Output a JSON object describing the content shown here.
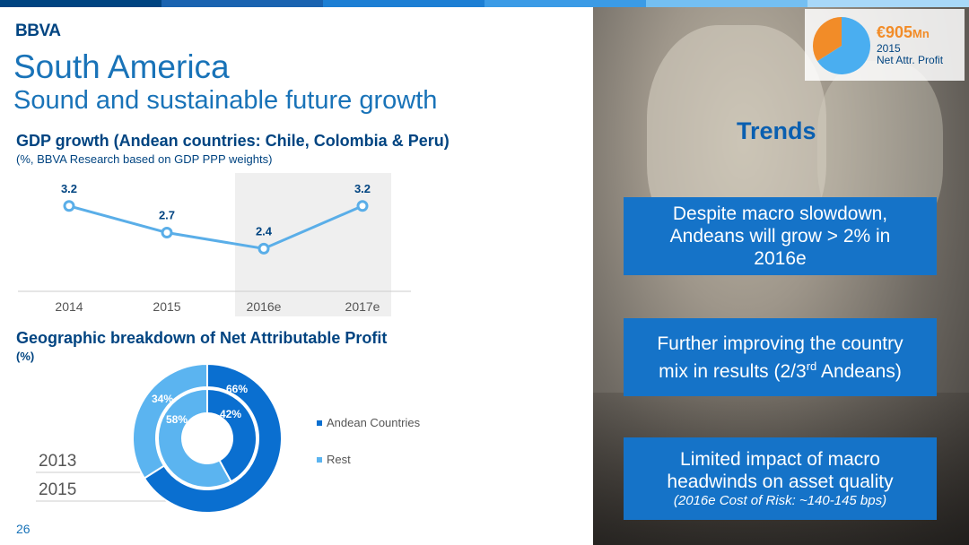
{
  "header": {
    "logo": "BBVA",
    "title": "South America",
    "subtitle": "Sound and sustainable future growth"
  },
  "gdp": {
    "title": "GDP growth (Andean countries: Chile, Colombia & Peru)",
    "subtitle": "(%, BBVA Research based on GDP PPP weights)"
  },
  "profit": {
    "title": "Geographic breakdown of Net Attributable Profit",
    "subtitle": "(%)",
    "years": [
      "2013",
      "2015"
    ],
    "legend": [
      "Andean Countries",
      "Rest"
    ]
  },
  "chart_data": [
    {
      "type": "line",
      "categories": [
        "2014",
        "2015",
        "2016e",
        "2017e"
      ],
      "values": [
        3.2,
        2.7,
        2.4,
        3.2
      ],
      "highlight_category": "2016e",
      "ylim": [
        0,
        4
      ]
    },
    {
      "type": "pie",
      "variant": "donut",
      "rings": [
        {
          "name": "2015",
          "position": "outer",
          "slices": [
            {
              "label": "Andean Countries",
              "value": 66,
              "text": "66%"
            },
            {
              "label": "Rest",
              "value": 34,
              "text": "34%"
            }
          ]
        },
        {
          "name": "2013",
          "position": "inner",
          "slices": [
            {
              "label": "Andean Countries",
              "value": 42,
              "text": "42%"
            },
            {
              "label": "Rest",
              "value": 58,
              "text": "58%"
            }
          ]
        }
      ],
      "colors": {
        "Andean Countries": "#0a6fd0",
        "Rest": "#5bb4f0"
      }
    },
    {
      "type": "pie",
      "slices": [
        {
          "label": "Andean",
          "value": 66
        },
        {
          "label": "Rest",
          "value": 34
        }
      ],
      "colors": {
        "Andean": "#4aaef0",
        "Rest": "#f28c28"
      }
    }
  ],
  "kpi": {
    "value": "€905",
    "unit": "Mn",
    "year": "2015",
    "label": "Net Attr. Profit"
  },
  "trends": {
    "title": "Trends",
    "items": [
      {
        "line1": "Despite macro slowdown,",
        "line2": "Andeans will grow > 2% in",
        "line3": "2016e"
      },
      {
        "line1": "Further improving the country",
        "line2a": "mix in results (2/3",
        "sup": "rd",
        "line2b": " Andeans)"
      },
      {
        "line1": "Limited impact of macro",
        "line2": "headwinds on asset quality",
        "note": "(2016e Cost of Risk: ~140-145 bps)"
      }
    ]
  },
  "footer": {
    "page": "26"
  },
  "colors": {
    "navy": "#004481",
    "blue": "#1973b8",
    "accent": "#1573c8",
    "orange": "#f28c28"
  }
}
